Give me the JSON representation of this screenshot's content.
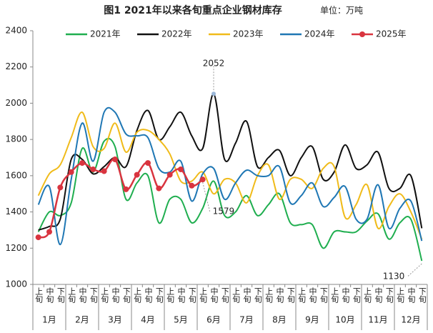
{
  "chart_data": {
    "type": "line",
    "title": "图1 2021年以来各旬重点企业钢材库存",
    "subtitle": "单位：万吨",
    "categories": [
      "上旬",
      "中旬",
      "下旬",
      "上旬",
      "中旬",
      "下旬",
      "上旬",
      "中旬",
      "下旬",
      "上旬",
      "中旬",
      "下旬",
      "上旬",
      "中旬",
      "下旬",
      "上旬",
      "中旬",
      "下旬",
      "上旬",
      "中旬",
      "下旬",
      "上旬",
      "中旬",
      "下旬",
      "上旬",
      "中旬",
      "下旬",
      "上旬",
      "中旬",
      "下旬",
      "上旬",
      "中旬",
      "下旬",
      "上旬",
      "中旬",
      "下旬"
    ],
    "months": [
      "1月",
      "2月",
      "3月",
      "4月",
      "5月",
      "6月",
      "7月",
      "8月",
      "9月",
      "10月",
      "11月",
      "12月"
    ],
    "ylim": [
      1000,
      2400
    ],
    "yticks": [
      1000,
      1200,
      1400,
      1600,
      1800,
      2000,
      2200,
      2400
    ],
    "series": [
      {
        "name": "2021年",
        "color": "#1fae4f",
        "values": [
          1290,
          1400,
          1380,
          1450,
          1750,
          1620,
          1790,
          1760,
          1470,
          1560,
          1600,
          1340,
          1470,
          1470,
          1340,
          1420,
          1570,
          1380,
          1400,
          1490,
          1380,
          1440,
          1500,
          1340,
          1330,
          1330,
          1200,
          1290,
          1290,
          1290,
          1350,
          1390,
          1250,
          1340,
          1360,
          1130
        ]
      },
      {
        "name": "2022年",
        "color": "#111111",
        "values": [
          1300,
          1320,
          1360,
          1690,
          1690,
          1610,
          1650,
          1700,
          1650,
          1850,
          1960,
          1800,
          1870,
          1950,
          1820,
          1750,
          2052,
          1690,
          1780,
          1900,
          1650,
          1700,
          1740,
          1600,
          1700,
          1760,
          1580,
          1620,
          1770,
          1640,
          1660,
          1730,
          1530,
          1530,
          1600,
          1310
        ]
      },
      {
        "name": "2023年",
        "color": "#f0bb1a",
        "values": [
          1490,
          1610,
          1660,
          1810,
          1950,
          1760,
          1750,
          1890,
          1730,
          1840,
          1850,
          1800,
          1720,
          1570,
          1570,
          1620,
          1500,
          1580,
          1560,
          1450,
          1600,
          1660,
          1470,
          1580,
          1580,
          1530,
          1640,
          1650,
          1370,
          1440,
          1550,
          1310,
          1430,
          1500,
          1400,
          1250
        ]
      },
      {
        "name": "2024年",
        "color": "#1f77b4",
        "values": [
          1440,
          1540,
          1220,
          1580,
          1890,
          1680,
          1950,
          1950,
          1830,
          1820,
          1810,
          1640,
          1620,
          1680,
          1460,
          1610,
          1640,
          1470,
          1560,
          1630,
          1600,
          1600,
          1650,
          1450,
          1490,
          1560,
          1430,
          1480,
          1540,
          1360,
          1360,
          1550,
          1310,
          1420,
          1460,
          1240
        ]
      },
      {
        "name": "2025年",
        "color": "#d9343f",
        "marker": true,
        "values": [
          1260,
          1290,
          1535,
          1620,
          1670,
          1635,
          1625,
          1690,
          1525,
          1605,
          1670,
          1530,
          1605,
          1635,
          1545,
          1579,
          null,
          null,
          null,
          null,
          null,
          null,
          null,
          null,
          null,
          null,
          null,
          null,
          null,
          null,
          null,
          null,
          null,
          null,
          null,
          null
        ]
      }
    ],
    "annotations": [
      {
        "text": "2052",
        "series": 1,
        "index": 16
      },
      {
        "text": "1579",
        "series": 4,
        "index": 15
      },
      {
        "text": "1130",
        "series": 0,
        "index": 35
      }
    ]
  }
}
